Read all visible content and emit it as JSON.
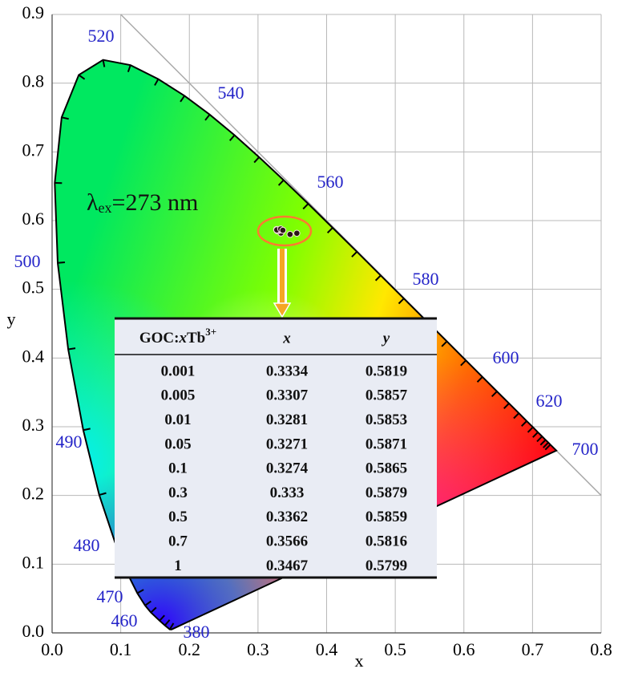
{
  "chart_data": {
    "type": "scatter",
    "xlabel": "x",
    "ylabel": "y",
    "xlim": [
      0,
      0.8
    ],
    "ylim": [
      0,
      0.9
    ],
    "xticks": [
      {
        "value": 0,
        "label": "0.0"
      },
      0.1,
      0.2,
      0.3,
      0.4,
      0.5,
      0.6,
      0.7,
      0.8
    ],
    "yticks": [
      {
        "value": 0,
        "label": "0.0"
      },
      0.1,
      0.2,
      0.3,
      0.4,
      0.5,
      0.6,
      0.7,
      0.8,
      0.9
    ],
    "grid": true,
    "point_color": "#2a1616",
    "wavelength_labels": [
      520,
      540,
      560,
      580,
      600,
      620,
      700,
      500,
      490,
      480,
      470,
      460,
      380
    ],
    "annotation": {
      "symbol": "λ",
      "subscript": "ex",
      "text": "=273 nm"
    },
    "table": {
      "header": {
        "prefix": "GOC:",
        "variable": "x",
        "element": "Tb",
        "superscript": "3+"
      },
      "columns": [
        "x",
        "y"
      ],
      "rows": [
        [
          0.001,
          0.3334,
          0.5819
        ],
        [
          0.005,
          0.3307,
          0.5857
        ],
        [
          0.01,
          0.3281,
          0.5853
        ],
        [
          0.05,
          0.3271,
          0.5871
        ],
        [
          0.1,
          0.3274,
          0.5865
        ],
        [
          0.3,
          0.333,
          0.5879
        ],
        [
          0.5,
          0.3362,
          0.5859
        ],
        [
          0.7,
          0.3566,
          0.5816
        ],
        [
          1,
          0.3467,
          0.5799
        ]
      ]
    }
  }
}
